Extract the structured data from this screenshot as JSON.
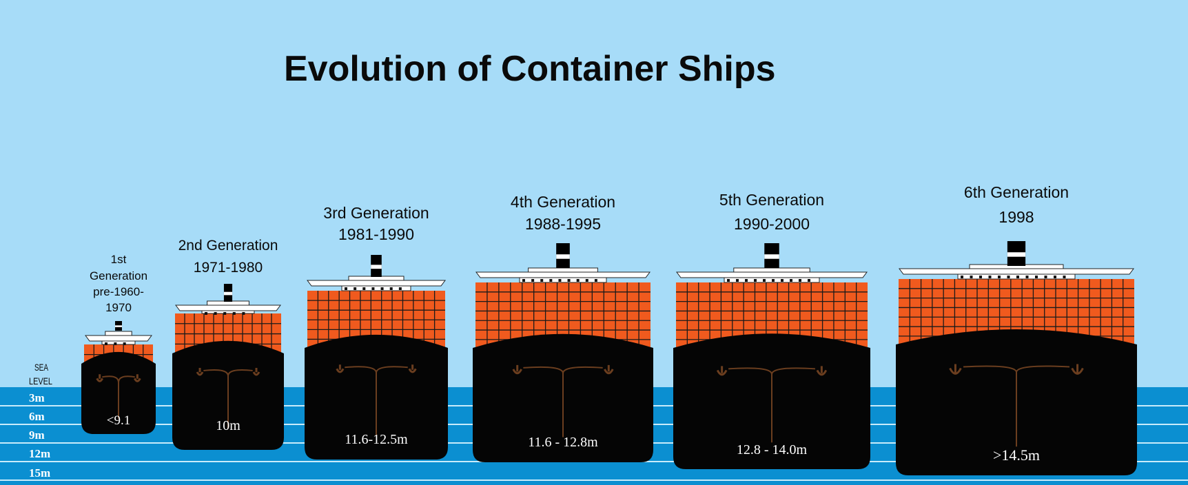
{
  "title": "Evolution of Container Ships",
  "sea_level_label": [
    "SEA",
    "LEVEL"
  ],
  "depth_marks": [
    "3m",
    "6m",
    "9m",
    "12m",
    "15m"
  ],
  "colors": {
    "sky": "#a7dcf8",
    "sea": "#0b8fd1",
    "sea_line": "#c9ecfb",
    "hull": "#050505",
    "containers": "#f05a1e",
    "container_grid": "#1a1a1a",
    "superstructure": "#ffffff",
    "funnel": "#000000",
    "keel_marks": "#6b3e1f"
  },
  "ships": [
    {
      "label_lines": [
        "1st",
        "Generation",
        "pre-1960-",
        "1970"
      ],
      "draft": "<9.1"
    },
    {
      "label_lines": [
        "2nd Generation",
        "1971-1980"
      ],
      "draft": "10m"
    },
    {
      "label_lines": [
        "3rd Generation",
        "1981-1990"
      ],
      "draft": "11.6-12.5m"
    },
    {
      "label_lines": [
        "4th Generation",
        "1988-1995"
      ],
      "draft": "11.6 - 12.8m"
    },
    {
      "label_lines": [
        "5th Generation",
        "1990-2000"
      ],
      "draft": "12.8 - 14.0m"
    },
    {
      "label_lines": [
        "6th Generation",
        "1998"
      ],
      "draft": ">14.5m"
    }
  ]
}
